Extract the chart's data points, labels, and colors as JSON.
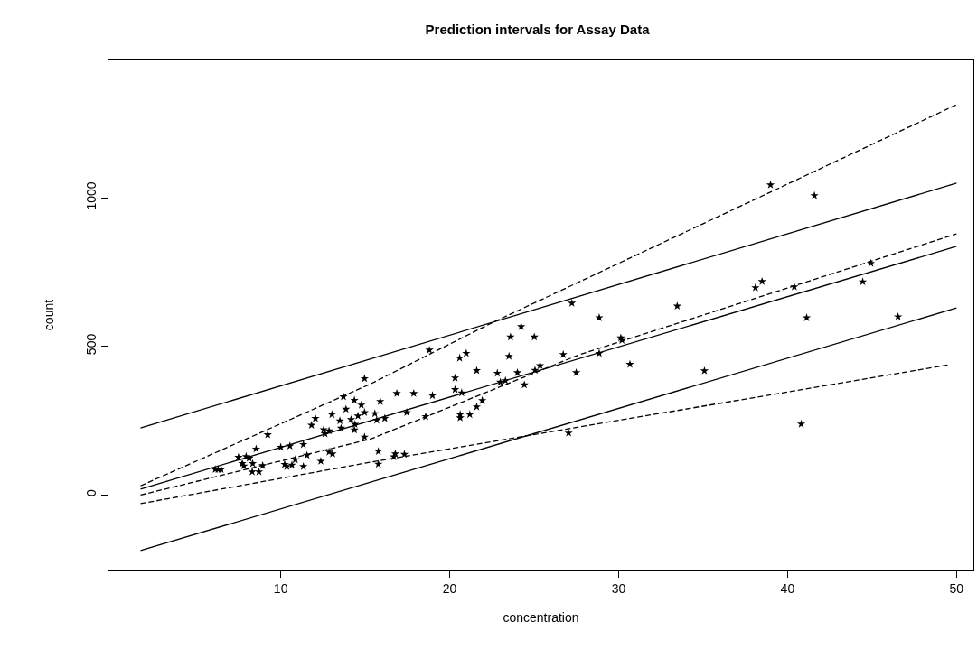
{
  "chart_data": {
    "type": "scatter",
    "title": "Prediction intervals for Assay Data",
    "xlabel": "concentration",
    "ylabel": "count",
    "xlim": [
      -0.2,
      51
    ],
    "ylim": [
      -255,
      1465
    ],
    "xticks": [
      10,
      20,
      30,
      40,
      50
    ],
    "yticks": [
      0,
      500,
      1000
    ],
    "grid": false,
    "series": [
      {
        "marker": "star",
        "color": "#000000",
        "x": [
          6.12,
          6.29,
          6.47,
          7.5,
          7.95,
          8.13,
          7.72,
          7.82,
          8.34,
          8.93,
          8.31,
          8.71,
          8.54,
          9.23,
          10.0,
          10.54,
          11.34,
          10.23,
          10.36,
          10.66,
          10.86,
          11.34,
          11.55,
          12.37,
          12.86,
          13.07,
          11.82,
          12.05,
          13.03,
          13.71,
          13.5,
          13.57,
          12.54,
          12.86,
          12.62,
          13.86,
          14.36,
          14.77,
          14.16,
          14.57,
          14.96,
          14.39,
          14.36,
          14.96,
          14.96,
          27.23,
          24.23,
          23.6,
          25.01,
          18.8,
          20.98,
          20.59,
          23.51,
          26.72,
          27.49,
          21.6,
          22.82,
          24.01,
          25.05,
          25.35,
          20.32,
          20.32,
          20.71,
          23.0,
          23.3,
          24.42,
          16.87,
          17.87,
          18.98,
          15.89,
          15.57,
          15.68,
          16.16,
          17.46,
          18.58,
          21.93,
          21.6,
          20.62,
          20.62,
          21.19,
          15.78,
          15.78,
          16.78,
          16.69,
          17.32,
          27.04,
          38.99,
          41.59,
          33.47,
          28.85,
          30.13,
          30.2,
          28.85,
          30.67,
          35.08,
          38.1,
          38.49,
          40.4,
          41.13,
          40.81,
          44.45,
          44.93,
          46.54
        ],
        "values": [
          85,
          85,
          85,
          126,
          129,
          123,
          105,
          97,
          105,
          98,
          77,
          77,
          154,
          202,
          160,
          164,
          169,
          102,
          95,
          100,
          118,
          95,
          133,
          113,
          144,
          138,
          234,
          257,
          270,
          330,
          249,
          224,
          219,
          215,
          205,
          288,
          318,
          302,
          253,
          265,
          277,
          237,
          218,
          391,
          194,
          645,
          566,
          531,
          531,
          487,
          476,
          460,
          466,
          472,
          411,
          418,
          409,
          411,
          419,
          435,
          393,
          354,
          343,
          379,
          384,
          370,
          341,
          341,
          334,
          314,
          273,
          251,
          257,
          277,
          263,
          317,
          296,
          270,
          259,
          270,
          146,
          103,
          138,
          128,
          136,
          208,
          1043,
          1007,
          635,
          596,
          528,
          520,
          476,
          439,
          417,
          697,
          718,
          700,
          596,
          238,
          717,
          779,
          599
        ]
      },
      {
        "type": "line",
        "line_style": "solid",
        "color": "#000000",
        "x": [
          1.7,
          50
        ],
        "values": [
          19,
          836
        ]
      },
      {
        "type": "line",
        "line_style": "solid",
        "color": "#000000",
        "x": [
          1.7,
          50
        ],
        "values": [
          225,
          1049
        ]
      },
      {
        "type": "line",
        "line_style": "solid",
        "color": "#000000",
        "x": [
          1.7,
          50
        ],
        "values": [
          -188,
          629
        ]
      },
      {
        "type": "line",
        "line_style": "dashed",
        "color": "#000000",
        "x": [
          1.7,
          15.35,
          22.48,
          50
        ],
        "values": [
          30,
          374,
          578,
          1313
        ]
      },
      {
        "type": "line",
        "line_style": "dashed",
        "color": "#000000",
        "x": [
          1.7,
          15.35,
          27.7,
          50
        ],
        "values": [
          -1,
          188,
          472,
          878
        ]
      },
      {
        "type": "line",
        "line_style": "dashed",
        "color": "#000000",
        "x": [
          1.7,
          15.35,
          49.6
        ],
        "values": [
          -30,
          110,
          438
        ]
      }
    ]
  }
}
